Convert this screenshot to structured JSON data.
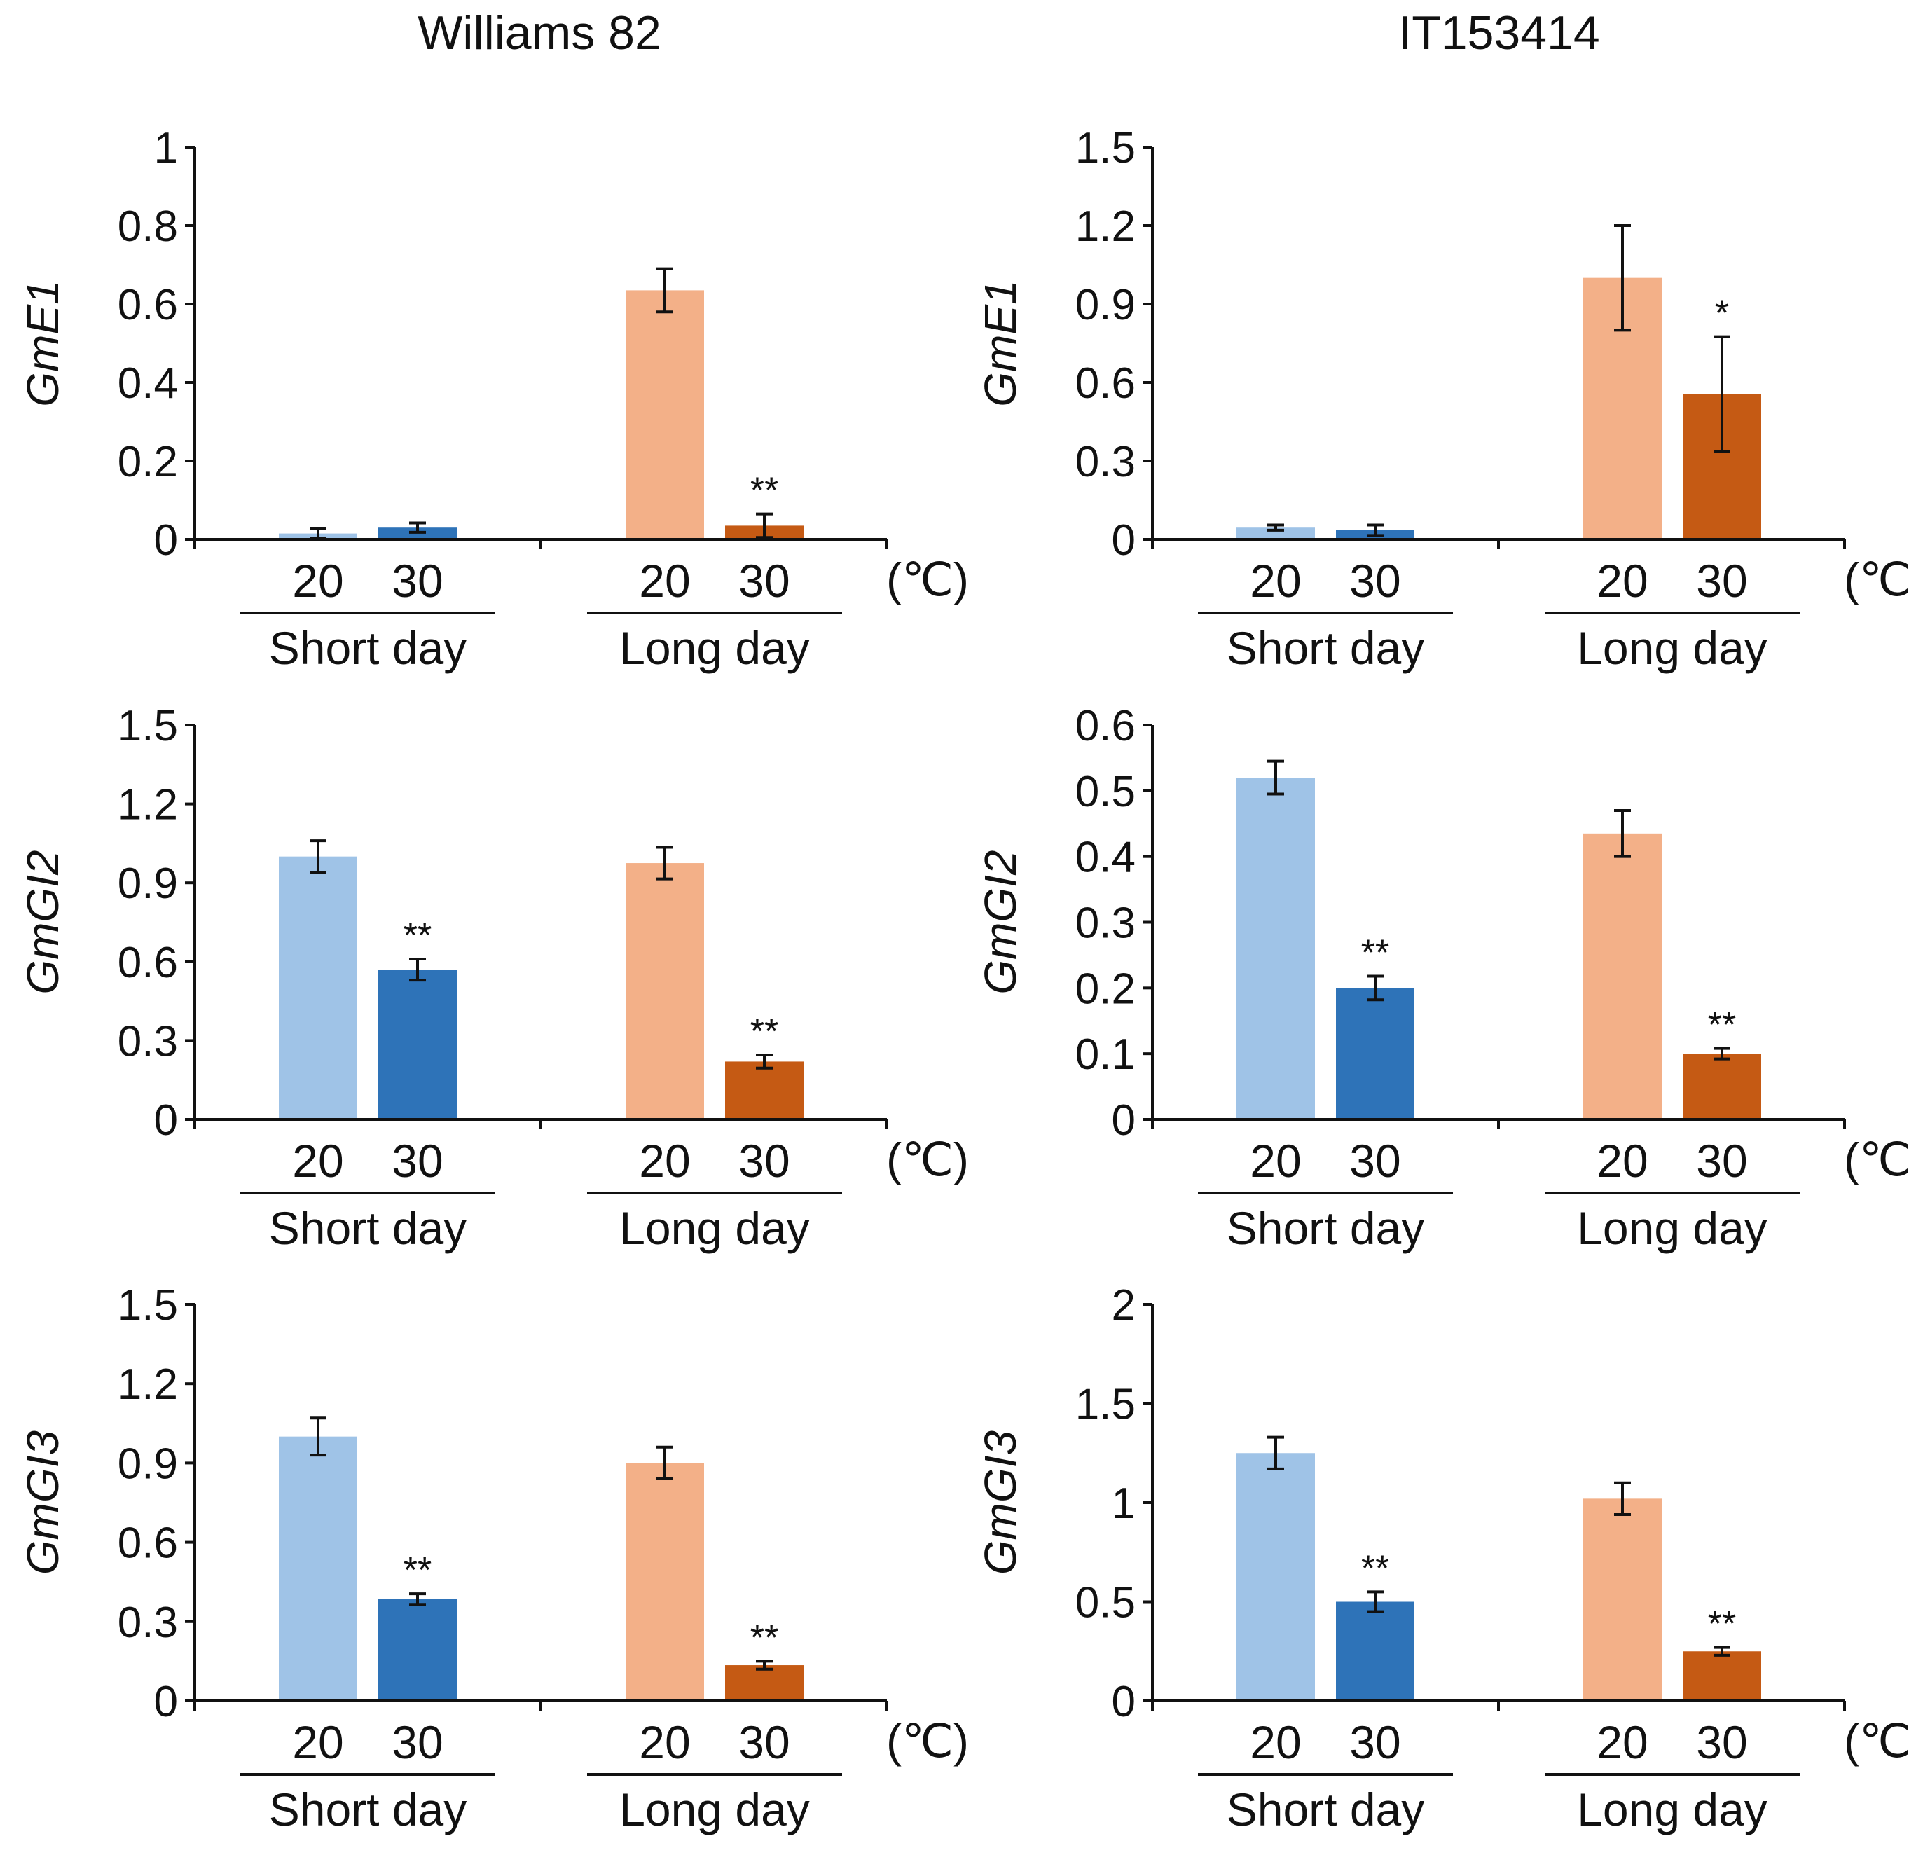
{
  "figure": {
    "column_titles": [
      "Williams 82",
      "IT153414"
    ],
    "colors": {
      "short_day_20": "#9fc3e7",
      "short_day_30": "#2e73b8",
      "long_day_20": "#f3b088",
      "long_day_30": "#c55a14",
      "axis": "#111111"
    }
  },
  "chart_data": [
    {
      "type": "bar",
      "cultivar": "Williams 82",
      "gene": "GmE1",
      "ylabel": "GmE1",
      "ylim": [
        0,
        1
      ],
      "yticks": [
        "0",
        "0.2",
        "0.4",
        "0.6",
        "0.8",
        "1"
      ],
      "groups": [
        "Short day",
        "Long day"
      ],
      "temperatures": [
        "20",
        "30"
      ],
      "unit": "(℃)",
      "values": [
        0.015,
        0.03,
        0.635,
        0.035
      ],
      "errors": [
        0.012,
        0.012,
        0.055,
        0.03
      ],
      "significance": [
        "",
        "",
        "",
        "**"
      ]
    },
    {
      "type": "bar",
      "cultivar": "IT153414",
      "gene": "GmE1",
      "ylabel": "GmE1",
      "ylim": [
        0,
        1.5
      ],
      "yticks": [
        "0",
        "0.3",
        "0.6",
        "0.9",
        "1.2",
        "1.5"
      ],
      "groups": [
        "Short day",
        "Long day"
      ],
      "temperatures": [
        "20",
        "30"
      ],
      "unit": "(℃)",
      "values": [
        0.045,
        0.035,
        1.0,
        0.555
      ],
      "errors": [
        0.01,
        0.02,
        0.2,
        0.22
      ],
      "significance": [
        "",
        "",
        "",
        "*"
      ]
    },
    {
      "type": "bar",
      "cultivar": "Williams 82",
      "gene": "GmGI2",
      "ylabel": "GmGI2",
      "ylim": [
        0,
        1.5
      ],
      "yticks": [
        "0",
        "0.3",
        "0.6",
        "0.9",
        "1.2",
        "1.5"
      ],
      "groups": [
        "Short day",
        "Long day"
      ],
      "temperatures": [
        "20",
        "30"
      ],
      "unit": "(℃)",
      "values": [
        1.0,
        0.57,
        0.975,
        0.22
      ],
      "errors": [
        0.06,
        0.04,
        0.06,
        0.025
      ],
      "significance": [
        "",
        "**",
        "",
        "**"
      ]
    },
    {
      "type": "bar",
      "cultivar": "IT153414",
      "gene": "GmGI2",
      "ylabel": "GmGI2",
      "ylim": [
        0,
        0.6
      ],
      "yticks": [
        "0",
        "0.1",
        "0.2",
        "0.3",
        "0.4",
        "0.5",
        "0.6"
      ],
      "groups": [
        "Short day",
        "Long day"
      ],
      "temperatures": [
        "20",
        "30"
      ],
      "unit": "(℃)",
      "values": [
        0.52,
        0.2,
        0.435,
        0.1
      ],
      "errors": [
        0.025,
        0.018,
        0.035,
        0.008
      ],
      "significance": [
        "",
        "**",
        "",
        "**"
      ]
    },
    {
      "type": "bar",
      "cultivar": "Williams 82",
      "gene": "GmGI3",
      "ylabel": "GmGI3",
      "ylim": [
        0,
        1.5
      ],
      "yticks": [
        "0",
        "0.3",
        "0.6",
        "0.9",
        "1.2",
        "1.5"
      ],
      "groups": [
        "Short day",
        "Long day"
      ],
      "temperatures": [
        "20",
        "30"
      ],
      "unit": "(℃)",
      "values": [
        1.0,
        0.385,
        0.9,
        0.135
      ],
      "errors": [
        0.07,
        0.02,
        0.06,
        0.015
      ],
      "significance": [
        "",
        "**",
        "",
        "**"
      ]
    },
    {
      "type": "bar",
      "cultivar": "IT153414",
      "gene": "GmGI3",
      "ylabel": "GmGI3",
      "ylim": [
        0,
        2
      ],
      "yticks": [
        "0",
        "0.5",
        "1",
        "1.5",
        "2"
      ],
      "groups": [
        "Short day",
        "Long day"
      ],
      "temperatures": [
        "20",
        "30"
      ],
      "unit": "(℃)",
      "values": [
        1.25,
        0.5,
        1.02,
        0.25
      ],
      "errors": [
        0.08,
        0.05,
        0.08,
        0.02
      ],
      "significance": [
        "",
        "**",
        "",
        "**"
      ]
    }
  ]
}
